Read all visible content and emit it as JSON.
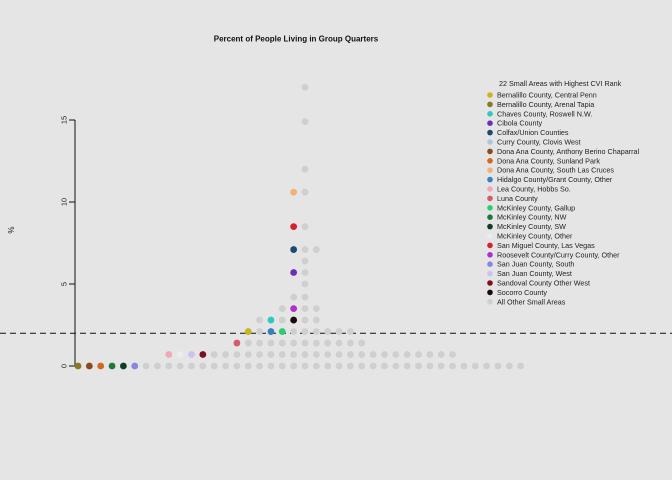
{
  "chart_data": {
    "type": "scatter",
    "title": "Percent of People Living in Group Quarters",
    "ylabel": "%",
    "xlabel": "",
    "ylim": [
      0,
      17
    ],
    "yticks": [
      0,
      5,
      10,
      15
    ],
    "reference_line": {
      "y": 2.0,
      "style": "dashed"
    },
    "grid": false,
    "legend": {
      "title": "22 Small Areas with Highest CVI Rank",
      "position": "top-right",
      "entries": [
        {
          "label": "Bernalillo County, Central Penn",
          "color": "#c9b51c"
        },
        {
          "label": "Bernalillo County, Arenal Tapia",
          "color": "#8a7a1e"
        },
        {
          "label": "Chaves County, Roswell N.W.",
          "color": "#2fc9c2"
        },
        {
          "label": "Cibola County",
          "color": "#6a2fb5"
        },
        {
          "label": "Colfax/Union Counties",
          "color": "#1b4a70"
        },
        {
          "label": "Curry County, Clovis West",
          "color": "#a7c8e3"
        },
        {
          "label": "Dona Ana County, Anthony Berino Chaparral",
          "color": "#8b4a1a"
        },
        {
          "label": "Dona Ana County, Sunland Park",
          "color": "#d06a1f"
        },
        {
          "label": "Dona Ana County, South Las Cruces",
          "color": "#f0b27a"
        },
        {
          "label": "Hidalgo County/Grant County, Other",
          "color": "#3a7fc4"
        },
        {
          "label": "Lea County, Hobbs So.",
          "color": "#f0a8b8"
        },
        {
          "label": "Luna County",
          "color": "#d65a6a"
        },
        {
          "label": "McKinley County, Gallup",
          "color": "#2ecc71"
        },
        {
          "label": "McKinley County, NW",
          "color": "#1f7a3a"
        },
        {
          "label": "McKinley County, SW",
          "color": "#0f3d22"
        },
        {
          "label": "McKinley County, Other",
          "color": "#e8eef0"
        },
        {
          "label": "San Miguel County, Las Vegas",
          "color": "#d62230"
        },
        {
          "label": "Roosevelt County/Curry County, Other",
          "color": "#b02fc9"
        },
        {
          "label": "San Juan County, South",
          "color": "#8a85e0"
        },
        {
          "label": "San Juan County, West",
          "color": "#c9c4ef"
        },
        {
          "label": "Sandoval County Other West",
          "color": "#7a1020"
        },
        {
          "label": "Socorro County",
          "color": "#1a0a0a"
        },
        {
          "label": "All Other Small Areas",
          "color": "#cfcfcf"
        }
      ]
    },
    "points": [
      {
        "x": 0,
        "y": 0,
        "series": 1
      },
      {
        "x": 1,
        "y": 0,
        "series": 6
      },
      {
        "x": 2,
        "y": 0,
        "series": 7
      },
      {
        "x": 3,
        "y": 0,
        "series": 13
      },
      {
        "x": 4,
        "y": 0,
        "series": 14
      },
      {
        "x": 5,
        "y": 0,
        "series": 18
      },
      {
        "x": 6,
        "y": 0,
        "series": 22
      },
      {
        "x": 7,
        "y": 0,
        "series": 22
      },
      {
        "x": 8,
        "y": 0,
        "series": 22
      },
      {
        "x": 9,
        "y": 0,
        "series": 22
      },
      {
        "x": 10,
        "y": 0,
        "series": 22
      },
      {
        "x": 11,
        "y": 0,
        "series": 22
      },
      {
        "x": 12,
        "y": 0,
        "series": 22
      },
      {
        "x": 13,
        "y": 0,
        "series": 22
      },
      {
        "x": 14,
        "y": 0,
        "series": 22
      },
      {
        "x": 15,
        "y": 0,
        "series": 22
      },
      {
        "x": 16,
        "y": 0,
        "series": 22
      },
      {
        "x": 17,
        "y": 0,
        "series": 22
      },
      {
        "x": 18,
        "y": 0,
        "series": 22
      },
      {
        "x": 19,
        "y": 0,
        "series": 22
      },
      {
        "x": 20,
        "y": 0,
        "series": 22
      },
      {
        "x": 21,
        "y": 0,
        "series": 22
      },
      {
        "x": 22,
        "y": 0,
        "series": 22
      },
      {
        "x": 23,
        "y": 0,
        "series": 22
      },
      {
        "x": 24,
        "y": 0,
        "series": 22
      },
      {
        "x": 25,
        "y": 0,
        "series": 22
      },
      {
        "x": 26,
        "y": 0,
        "series": 22
      },
      {
        "x": 27,
        "y": 0,
        "series": 22
      },
      {
        "x": 28,
        "y": 0,
        "series": 22
      },
      {
        "x": 29,
        "y": 0,
        "series": 22
      },
      {
        "x": 30,
        "y": 0,
        "series": 22
      },
      {
        "x": 31,
        "y": 0,
        "series": 22
      },
      {
        "x": 32,
        "y": 0,
        "series": 22
      },
      {
        "x": 33,
        "y": 0,
        "series": 22
      },
      {
        "x": 34,
        "y": 0,
        "series": 22
      },
      {
        "x": 35,
        "y": 0,
        "series": 22
      },
      {
        "x": 36,
        "y": 0,
        "series": 22
      },
      {
        "x": 37,
        "y": 0,
        "series": 22
      },
      {
        "x": 38,
        "y": 0,
        "series": 22
      },
      {
        "x": 39,
        "y": 0,
        "series": 22
      },
      {
        "x": 8,
        "y": 0.7,
        "series": 10
      },
      {
        "x": 9,
        "y": 0.7,
        "series": 15
      },
      {
        "x": 10,
        "y": 0.7,
        "series": 19
      },
      {
        "x": 11,
        "y": 0.7,
        "series": 20
      },
      {
        "x": 12,
        "y": 0.7,
        "series": 22
      },
      {
        "x": 13,
        "y": 0.7,
        "series": 22
      },
      {
        "x": 14,
        "y": 0.7,
        "series": 22
      },
      {
        "x": 15,
        "y": 0.7,
        "series": 22
      },
      {
        "x": 16,
        "y": 0.7,
        "series": 22
      },
      {
        "x": 17,
        "y": 0.7,
        "series": 22
      },
      {
        "x": 18,
        "y": 0.7,
        "series": 22
      },
      {
        "x": 19,
        "y": 0.7,
        "series": 22
      },
      {
        "x": 20,
        "y": 0.7,
        "series": 22
      },
      {
        "x": 21,
        "y": 0.7,
        "series": 22
      },
      {
        "x": 22,
        "y": 0.7,
        "series": 22
      },
      {
        "x": 23,
        "y": 0.7,
        "series": 22
      },
      {
        "x": 24,
        "y": 0.7,
        "series": 22
      },
      {
        "x": 25,
        "y": 0.7,
        "series": 22
      },
      {
        "x": 26,
        "y": 0.7,
        "series": 22
      },
      {
        "x": 27,
        "y": 0.7,
        "series": 22
      },
      {
        "x": 28,
        "y": 0.7,
        "series": 22
      },
      {
        "x": 29,
        "y": 0.7,
        "series": 22
      },
      {
        "x": 30,
        "y": 0.7,
        "series": 22
      },
      {
        "x": 31,
        "y": 0.7,
        "series": 22
      },
      {
        "x": 32,
        "y": 0.7,
        "series": 22
      },
      {
        "x": 33,
        "y": 0.7,
        "series": 22
      },
      {
        "x": 14,
        "y": 1.4,
        "series": 11
      },
      {
        "x": 15,
        "y": 1.4,
        "series": 22
      },
      {
        "x": 16,
        "y": 1.4,
        "series": 22
      },
      {
        "x": 17,
        "y": 1.4,
        "series": 22
      },
      {
        "x": 18,
        "y": 1.4,
        "series": 22
      },
      {
        "x": 19,
        "y": 1.4,
        "series": 22
      },
      {
        "x": 20,
        "y": 1.4,
        "series": 22
      },
      {
        "x": 21,
        "y": 1.4,
        "series": 22
      },
      {
        "x": 22,
        "y": 1.4,
        "series": 22
      },
      {
        "x": 23,
        "y": 1.4,
        "series": 22
      },
      {
        "x": 24,
        "y": 1.4,
        "series": 22
      },
      {
        "x": 25,
        "y": 1.4,
        "series": 22
      },
      {
        "x": 15,
        "y": 2.1,
        "series": 0
      },
      {
        "x": 16,
        "y": 2.1,
        "series": 22
      },
      {
        "x": 17,
        "y": 2.1,
        "series": 9
      },
      {
        "x": 18,
        "y": 2.1,
        "series": 12
      },
      {
        "x": 19,
        "y": 2.1,
        "series": 22
      },
      {
        "x": 20,
        "y": 2.1,
        "series": 22
      },
      {
        "x": 21,
        "y": 2.1,
        "series": 22
      },
      {
        "x": 22,
        "y": 2.1,
        "series": 22
      },
      {
        "x": 23,
        "y": 2.1,
        "series": 22
      },
      {
        "x": 24,
        "y": 2.1,
        "series": 22
      },
      {
        "x": 16,
        "y": 2.8,
        "series": 22
      },
      {
        "x": 17,
        "y": 2.8,
        "series": 2
      },
      {
        "x": 18,
        "y": 2.8,
        "series": 22
      },
      {
        "x": 19,
        "y": 2.8,
        "series": 21
      },
      {
        "x": 20,
        "y": 2.8,
        "series": 22
      },
      {
        "x": 21,
        "y": 2.8,
        "series": 22
      },
      {
        "x": 18,
        "y": 3.5,
        "series": 22
      },
      {
        "x": 19,
        "y": 3.5,
        "series": 17
      },
      {
        "x": 20,
        "y": 3.5,
        "series": 22
      },
      {
        "x": 21,
        "y": 3.5,
        "series": 22
      },
      {
        "x": 19,
        "y": 4.2,
        "series": 22
      },
      {
        "x": 20,
        "y": 4.2,
        "series": 22
      },
      {
        "x": 20,
        "y": 5.0,
        "series": 22
      },
      {
        "x": 19,
        "y": 5.7,
        "series": 3
      },
      {
        "x": 20,
        "y": 5.7,
        "series": 22
      },
      {
        "x": 20,
        "y": 6.4,
        "series": 22
      },
      {
        "x": 19,
        "y": 7.1,
        "series": 4
      },
      {
        "x": 20,
        "y": 7.1,
        "series": 22
      },
      {
        "x": 21,
        "y": 7.1,
        "series": 22
      },
      {
        "x": 19,
        "y": 8.5,
        "series": 16
      },
      {
        "x": 20,
        "y": 8.5,
        "series": 22
      },
      {
        "x": 19,
        "y": 10.6,
        "series": 8
      },
      {
        "x": 20,
        "y": 10.6,
        "series": 22
      },
      {
        "x": 20,
        "y": 12.0,
        "series": 22
      },
      {
        "x": 20,
        "y": 14.9,
        "series": 22
      },
      {
        "x": 20,
        "y": 17.0,
        "series": 22
      }
    ]
  }
}
